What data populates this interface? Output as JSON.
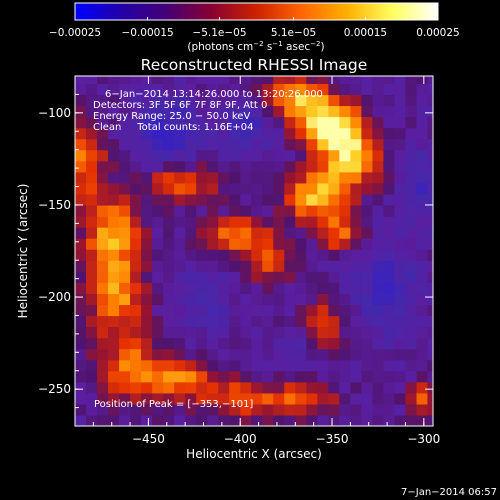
{
  "chart_data": {
    "type": "heatmap",
    "title": "Reconstructed RHESSI Image",
    "xlabel": "Heliocentric X (arcsec)",
    "ylabel": "Heliocentric Y (arcsec)",
    "xlim": [
      -490,
      -295
    ],
    "ylim": [
      -270,
      -80
    ],
    "x_ticks": [
      {
        "value": -450,
        "label": "−450"
      },
      {
        "value": -400,
        "label": "−400"
      },
      {
        "value": -350,
        "label": "−350"
      },
      {
        "value": -300,
        "label": "−300"
      }
    ],
    "y_ticks": [
      {
        "value": -100,
        "label": "−100"
      },
      {
        "value": -150,
        "label": "−150"
      },
      {
        "value": -200,
        "label": "−200"
      },
      {
        "value": -250,
        "label": "−250"
      }
    ],
    "colorbar": {
      "range": [
        -0.00025,
        0.00025
      ],
      "ticks": [
        {
          "value": -0.00025,
          "label": "−0.00025"
        },
        {
          "value": -0.00015,
          "label": "−0.00015"
        },
        {
          "value": -5.1e-05,
          "label": "−5.1e−05"
        },
        {
          "value": 5.1e-05,
          "label": "5.1e−05"
        },
        {
          "value": 0.00015,
          "label": "0.00015"
        },
        {
          "value": 0.00025,
          "label": "0.00025"
        }
      ],
      "units_prefix": "(photons cm",
      "units_suffix": " asec",
      "units_s": " s",
      "units_close": ")",
      "exp_cm": "−2",
      "exp_s": "−1",
      "exp_asec": "−2",
      "colors": [
        "#0000ff",
        "#2200aa",
        "#440077",
        "#880033",
        "#cc2200",
        "#ff6600",
        "#ffb000",
        "#ffff60",
        "#ffffff"
      ]
    },
    "annotations": [
      "6−Jan−2014 13:14:26.000 to 13:20:26.000",
      "Detectors: 3F 5F 6F 7F 8F 9F, Att 0",
      "Energy Range: 25.0 − 50.0 keV",
      "Clean     Total counts: 1.16E+04"
    ],
    "peak_label": "Position of Peak = [−353,−101]",
    "peak": [
      -353,
      -101
    ],
    "timestamp": "7−Jan−2014 06:57",
    "hot_regions": [
      {
        "x": -352,
        "y": -105,
        "w": 17,
        "h": 14,
        "v": 1.0
      },
      {
        "x": -340,
        "y": -125,
        "w": 15,
        "h": 16,
        "v": 0.9
      },
      {
        "x": -360,
        "y": -145,
        "w": 16,
        "h": 13,
        "v": 0.82
      },
      {
        "x": -372,
        "y": -90,
        "w": 16,
        "h": 12,
        "v": 0.72
      },
      {
        "x": -345,
        "y": -165,
        "w": 12,
        "h": 10,
        "v": 0.6
      },
      {
        "x": -470,
        "y": -165,
        "w": 16,
        "h": 22,
        "v": 0.7
      },
      {
        "x": -468,
        "y": -200,
        "w": 15,
        "h": 22,
        "v": 0.68
      },
      {
        "x": -458,
        "y": -240,
        "w": 18,
        "h": 16,
        "v": 0.66
      },
      {
        "x": -485,
        "y": -125,
        "w": 11,
        "h": 20,
        "v": 0.6
      },
      {
        "x": -430,
        "y": -245,
        "w": 17,
        "h": 10,
        "v": 0.58
      },
      {
        "x": -400,
        "y": -255,
        "w": 20,
        "h": 10,
        "v": 0.56
      },
      {
        "x": -365,
        "y": -255,
        "w": 18,
        "h": 9,
        "v": 0.54
      },
      {
        "x": -432,
        "y": -138,
        "w": 20,
        "h": 9,
        "v": 0.56
      },
      {
        "x": -402,
        "y": -166,
        "w": 17,
        "h": 10,
        "v": 0.62
      },
      {
        "x": -384,
        "y": -180,
        "w": 13,
        "h": 12,
        "v": 0.5
      },
      {
        "x": -355,
        "y": -215,
        "w": 11,
        "h": 14,
        "v": 0.52
      },
      {
        "x": -300,
        "y": -255,
        "w": 8,
        "h": 9,
        "v": 0.55
      }
    ],
    "cold_regions": [
      {
        "x": -440,
        "y": -110,
        "w": 17,
        "h": 18,
        "v": -0.45
      },
      {
        "x": -395,
        "y": -105,
        "w": 15,
        "h": 15,
        "v": -0.35
      },
      {
        "x": -320,
        "y": -195,
        "w": 17,
        "h": 24,
        "v": -0.38
      },
      {
        "x": -300,
        "y": -140,
        "w": 11,
        "h": 18,
        "v": -0.35
      },
      {
        "x": -420,
        "y": -200,
        "w": 15,
        "h": 15,
        "v": -0.28
      },
      {
        "x": -370,
        "y": -230,
        "w": 13,
        "h": 10,
        "v": -0.25
      }
    ]
  }
}
